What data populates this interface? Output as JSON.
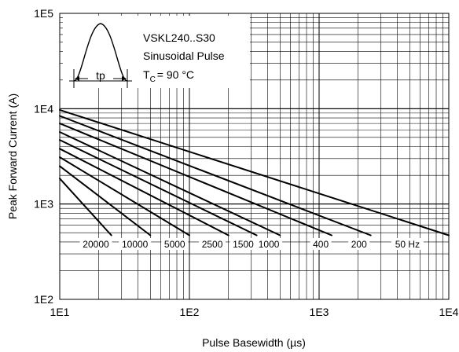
{
  "chart_data": {
    "type": "line",
    "xlabel": "Pulse Basewidth (µs)",
    "ylabel": "Peak Forward Current (A)",
    "x_scale": "log",
    "y_scale": "log",
    "xlim": [
      10,
      10000
    ],
    "ylim": [
      100,
      100000
    ],
    "x_ticks": [
      {
        "value": 10,
        "label": "1E1"
      },
      {
        "value": 100,
        "label": "1E2"
      },
      {
        "value": 1000,
        "label": "1E3"
      },
      {
        "value": 10000,
        "label": "1E4"
      }
    ],
    "y_ticks": [
      {
        "value": 100,
        "label": "1E2"
      },
      {
        "value": 1000,
        "label": "1E3"
      },
      {
        "value": 10000,
        "label": "1E4"
      },
      {
        "value": 100000,
        "label": "1E5"
      }
    ],
    "grid": true,
    "annotation": {
      "device": "VSKL240..S30",
      "waveform": "Sinusoidal Pulse",
      "tc_prefix": "T",
      "tc_sub": "C",
      "tc_value": "= 90 °C",
      "pulse_label": "tp"
    },
    "series": [
      {
        "name": "20000",
        "x": [
          10,
          25
        ],
        "y": [
          1850,
          470
        ],
        "label_x": 19
      },
      {
        "name": "10000",
        "x": [
          10,
          50
        ],
        "y": [
          2500,
          470
        ],
        "label_x": 38
      },
      {
        "name": "5000",
        "x": [
          10,
          100
        ],
        "y": [
          3100,
          470
        ],
        "label_x": 77
      },
      {
        "name": "2500",
        "x": [
          10,
          200
        ],
        "y": [
          3800,
          470
        ],
        "label_x": 150
      },
      {
        "name": "1500",
        "x": [
          10,
          330
        ],
        "y": [
          4700,
          470
        ],
        "label_x": 260
      },
      {
        "name": "1000",
        "x": [
          10,
          500
        ],
        "y": [
          5700,
          470
        ],
        "label_x": 410
      },
      {
        "name": "400",
        "x": [
          10,
          1250
        ],
        "y": [
          7000,
          470
        ],
        "label_x": 1030
      },
      {
        "name": "200",
        "x": [
          10,
          2500
        ],
        "y": [
          8400,
          470
        ],
        "label_x": 2030
      },
      {
        "name": "50 Hz",
        "x": [
          10,
          10000
        ],
        "y": [
          9700,
          470
        ],
        "label_x": 4800
      }
    ],
    "label_y": 350
  }
}
